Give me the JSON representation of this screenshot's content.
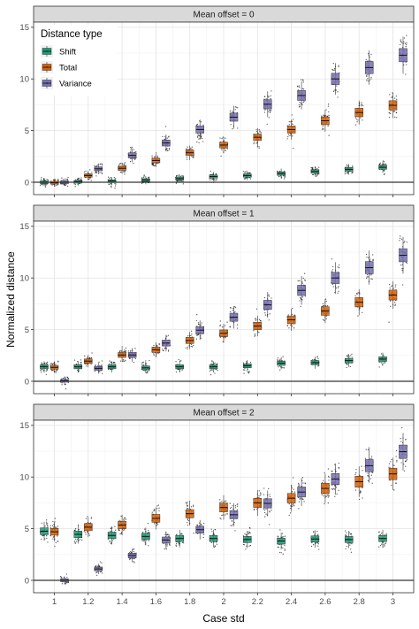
{
  "chart_data": {
    "type": "boxplot",
    "facet_variable": "Mean offset",
    "xlabel": "Case std",
    "ylabel": "Normalized distance",
    "x_ticks": [
      "1",
      "1.2",
      "1.4",
      "1.6",
      "1.8",
      "2",
      "2.2",
      "2.4",
      "2.6",
      "2.8",
      "3"
    ],
    "y_ticks": [
      "0",
      "5",
      "10",
      "15"
    ],
    "ylim": [
      -1.2,
      15.5
    ],
    "legend": {
      "title": "Distance type",
      "position": "top-left inside first panel"
    },
    "colors": {
      "Shift": "#1b9e77",
      "Total": "#d95f02",
      "Variance": "#7570b3"
    },
    "groups": [
      {
        "name": "Shift",
        "dodge": -1
      },
      {
        "name": "Total",
        "dodge": 0
      },
      {
        "name": "Variance",
        "dodge": 1
      }
    ],
    "panels": [
      {
        "label": "Mean offset = 0",
        "medians": {
          "Shift": [
            0.0,
            0.05,
            0.1,
            0.2,
            0.35,
            0.55,
            0.65,
            0.85,
            1.05,
            1.25,
            1.45
          ],
          "Total": [
            -0.05,
            0.65,
            1.35,
            2.1,
            2.85,
            3.6,
            4.35,
            5.1,
            5.95,
            6.75,
            7.45
          ],
          "Variance": [
            0.0,
            1.3,
            2.6,
            3.8,
            5.1,
            6.3,
            7.55,
            8.4,
            10.0,
            11.1,
            12.3
          ]
        }
      },
      {
        "label": "Mean offset = 1",
        "medians": {
          "Shift": [
            1.4,
            1.4,
            1.4,
            1.3,
            1.4,
            1.4,
            1.5,
            1.75,
            1.8,
            2.0,
            2.15
          ],
          "Total": [
            1.35,
            1.95,
            2.55,
            3.05,
            3.95,
            4.65,
            5.35,
            5.95,
            6.8,
            7.65,
            8.35
          ],
          "Variance": [
            0.05,
            1.25,
            2.55,
            3.7,
            4.95,
            6.2,
            7.4,
            8.8,
            10.0,
            11.0,
            12.2
          ]
        }
      },
      {
        "label": "Mean offset = 2",
        "medians": {
          "Shift": [
            4.75,
            4.45,
            4.35,
            4.25,
            4.05,
            4.05,
            3.95,
            3.8,
            4.0,
            3.95,
            4.05
          ],
          "Total": [
            4.7,
            5.15,
            5.35,
            6.0,
            6.45,
            7.05,
            7.5,
            7.95,
            8.9,
            9.55,
            10.3
          ],
          "Variance": [
            0.0,
            1.1,
            2.4,
            3.9,
            4.9,
            6.35,
            7.45,
            8.55,
            9.8,
            11.1,
            12.45
          ]
        }
      }
    ]
  }
}
